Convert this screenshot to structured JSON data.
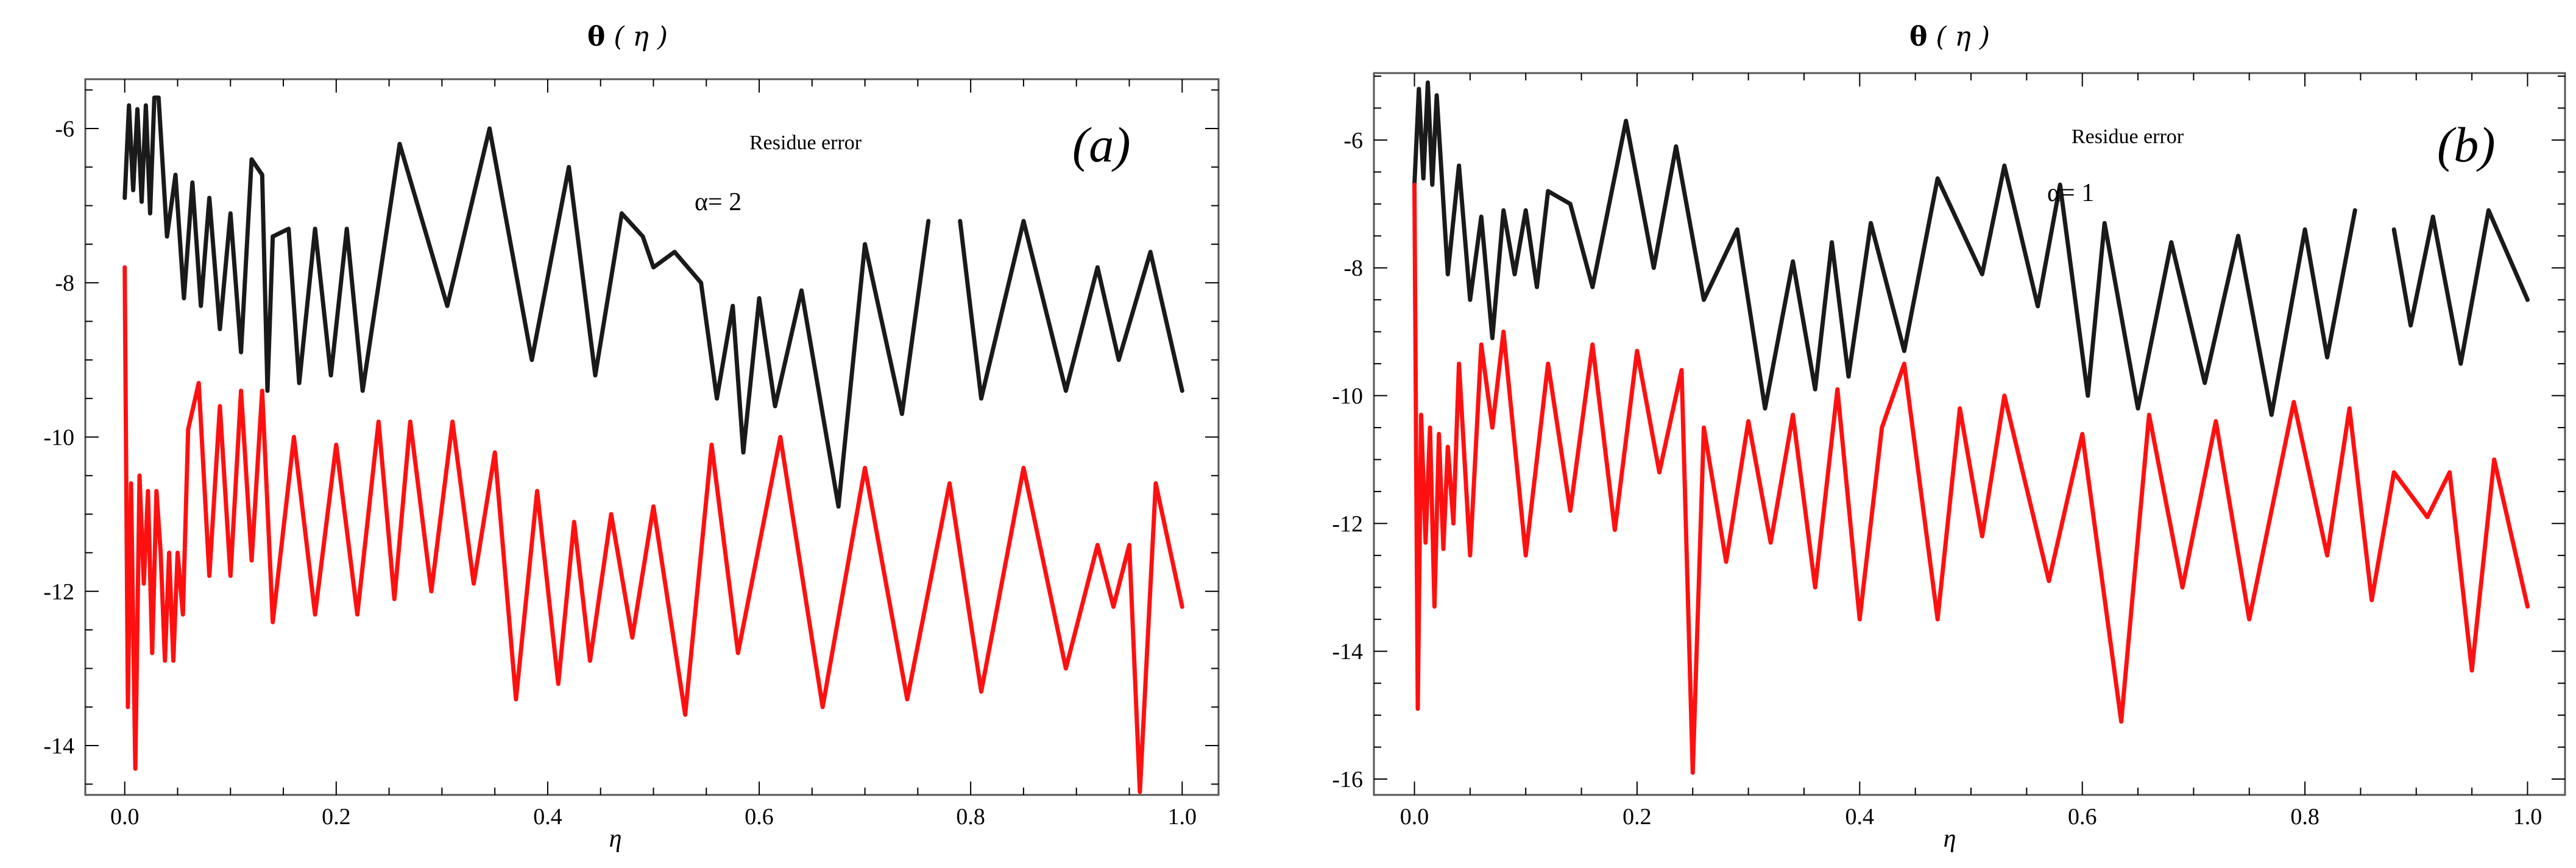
{
  "chart_data": [
    {
      "type": "line",
      "title": "θ (η)",
      "title_symbol": "θ",
      "title_arg": "η",
      "panel_label": "(a)",
      "annotation": "Residue error",
      "param_label": "α= 2",
      "xlabel": "η",
      "ylabel": "",
      "xlim": [
        -0.02,
        1.02
      ],
      "ylim": [
        -14.6,
        -5.4
      ],
      "x_ticks": [
        0.0,
        0.2,
        0.4,
        0.6,
        0.8,
        1.0
      ],
      "x_tick_labels": [
        "0.0",
        "0.2",
        "0.4",
        "0.6",
        "0.8",
        "1.0"
      ],
      "y_ticks": [
        -6,
        -8,
        -10,
        -12,
        -14
      ],
      "y_tick_labels": [
        "-6",
        "-8",
        "-10",
        "-12",
        "-14"
      ],
      "series": [
        {
          "name": "black",
          "color": "#1a1a1a",
          "x": [
            0.0,
            0.004,
            0.008,
            0.012,
            0.016,
            0.02,
            0.024,
            0.028,
            0.032,
            0.04,
            0.048,
            0.056,
            0.064,
            0.072,
            0.08,
            0.09,
            0.1,
            0.11,
            0.12,
            0.13,
            0.135,
            0.14,
            0.155,
            0.165,
            0.18,
            0.195,
            0.21,
            0.225,
            0.26,
            0.305,
            0.345,
            0.385,
            0.42,
            0.445,
            0.47,
            0.49,
            0.5,
            0.52,
            0.545,
            0.56,
            0.575,
            0.585,
            0.6,
            0.615,
            0.64,
            0.675,
            0.7,
            0.735,
            0.76,
            0.78,
            0.79,
            0.81,
            0.85,
            0.89,
            0.92,
            0.94,
            0.97,
            1.0
          ],
          "values": [
            -6.9,
            -5.7,
            -6.8,
            -5.75,
            -6.95,
            -5.7,
            -7.1,
            -5.6,
            -5.6,
            -7.4,
            -6.6,
            -8.2,
            -6.7,
            -8.3,
            -6.9,
            -8.6,
            -7.1,
            -8.9,
            -6.4,
            -6.6,
            -9.4,
            -7.4,
            -7.3,
            -9.3,
            -7.3,
            -9.2,
            -7.3,
            -9.4,
            -6.2,
            -8.3,
            -6.0,
            -9.0,
            -6.5,
            -9.2,
            -7.1,
            -7.4,
            -7.8,
            -7.6,
            -8.0,
            -9.5,
            -8.3,
            -10.2,
            -8.2,
            -9.6,
            -8.1,
            -10.9,
            -7.5,
            -9.7,
            -7.2,
            null,
            -7.2,
            -9.5,
            -7.2,
            -9.4,
            -7.8,
            -9.0,
            -7.6,
            -9.4
          ]
        },
        {
          "name": "red",
          "color": "#ff1010",
          "x": [
            0.0,
            0.003,
            0.006,
            0.01,
            0.014,
            0.018,
            0.022,
            0.026,
            0.03,
            0.034,
            0.038,
            0.042,
            0.046,
            0.05,
            0.055,
            0.06,
            0.07,
            0.08,
            0.09,
            0.1,
            0.11,
            0.12,
            0.13,
            0.14,
            0.16,
            0.18,
            0.2,
            0.22,
            0.24,
            0.255,
            0.27,
            0.29,
            0.31,
            0.33,
            0.35,
            0.37,
            0.39,
            0.41,
            0.425,
            0.44,
            0.46,
            0.48,
            0.5,
            0.53,
            0.555,
            0.58,
            0.62,
            0.66,
            0.7,
            0.74,
            0.78,
            0.81,
            0.85,
            0.89,
            0.92,
            0.935,
            0.95,
            0.96,
            0.975,
            1.0
          ],
          "values": [
            -7.8,
            -13.5,
            -10.6,
            -14.3,
            -10.5,
            -11.9,
            -10.7,
            -12.8,
            -10.7,
            -11.5,
            -12.9,
            -11.5,
            -12.9,
            -11.5,
            -12.3,
            -9.9,
            -9.3,
            -11.8,
            -9.6,
            -11.8,
            -9.4,
            -11.6,
            -9.4,
            -12.4,
            -10.0,
            -12.3,
            -10.1,
            -12.3,
            -9.8,
            -12.1,
            -9.8,
            -12.0,
            -9.8,
            -11.9,
            -10.2,
            -13.4,
            -10.7,
            -13.2,
            -11.1,
            -12.9,
            -11.0,
            -12.6,
            -10.9,
            -13.6,
            -10.1,
            -12.8,
            -10.0,
            -13.5,
            -10.4,
            -13.4,
            -10.6,
            -13.3,
            -10.4,
            -13.0,
            -11.4,
            -12.2,
            -11.4,
            -14.6,
            -10.6,
            -12.2
          ]
        }
      ]
    },
    {
      "type": "line",
      "title": "θ (η)",
      "title_symbol": "θ",
      "title_arg": "η",
      "panel_label": "(b)",
      "annotation": "Residue error",
      "param_label": "α= 1",
      "xlabel": "η",
      "ylabel": "",
      "xlim": [
        -0.02,
        1.02
      ],
      "ylim": [
        -16.2,
        -5.0
      ],
      "x_ticks": [
        0.0,
        0.2,
        0.4,
        0.6,
        0.8,
        1.0
      ],
      "x_tick_labels": [
        "0.0",
        "0.2",
        "0.4",
        "0.6",
        "0.8",
        "1.0"
      ],
      "y_ticks": [
        -6,
        -8,
        -10,
        -12,
        -14,
        -16
      ],
      "y_tick_labels": [
        "-6",
        "-8",
        "-10",
        "-12",
        "-14",
        "-16"
      ],
      "series": [
        {
          "name": "black",
          "color": "#1a1a1a",
          "x": [
            0.0,
            0.004,
            0.008,
            0.012,
            0.016,
            0.02,
            0.03,
            0.04,
            0.05,
            0.06,
            0.07,
            0.08,
            0.09,
            0.1,
            0.11,
            0.12,
            0.14,
            0.16,
            0.19,
            0.215,
            0.235,
            0.26,
            0.29,
            0.315,
            0.34,
            0.36,
            0.375,
            0.39,
            0.41,
            0.44,
            0.47,
            0.51,
            0.53,
            0.56,
            0.58,
            0.605,
            0.62,
            0.65,
            0.68,
            0.71,
            0.74,
            0.77,
            0.8,
            0.82,
            0.845,
            0.86,
            0.88,
            0.895,
            0.915,
            0.94,
            0.965,
            1.0
          ],
          "values": [
            -6.7,
            -5.2,
            -6.6,
            -5.1,
            -6.7,
            -5.3,
            -8.1,
            -6.4,
            -8.5,
            -7.2,
            -9.1,
            -7.1,
            -8.1,
            -7.1,
            -8.3,
            -6.8,
            -7.0,
            -8.3,
            -5.7,
            -8.0,
            -6.1,
            -8.5,
            -7.4,
            -10.2,
            -7.9,
            -9.9,
            -7.6,
            -9.7,
            -7.3,
            -9.3,
            -6.6,
            -8.1,
            -6.4,
            -8.6,
            -6.7,
            -10.0,
            -7.3,
            -10.2,
            -7.6,
            -9.8,
            -7.5,
            -10.3,
            -7.4,
            -9.4,
            -7.1,
            null,
            -7.4,
            -8.9,
            -7.2,
            -9.5,
            -7.1,
            -8.5
          ]
        },
        {
          "name": "red",
          "color": "#ff1010",
          "x": [
            0.0,
            0.003,
            0.006,
            0.01,
            0.014,
            0.018,
            0.022,
            0.026,
            0.03,
            0.035,
            0.04,
            0.05,
            0.06,
            0.07,
            0.08,
            0.1,
            0.12,
            0.14,
            0.16,
            0.18,
            0.2,
            0.22,
            0.24,
            0.25,
            0.26,
            0.28,
            0.3,
            0.32,
            0.34,
            0.36,
            0.38,
            0.4,
            0.42,
            0.44,
            0.47,
            0.49,
            0.51,
            0.53,
            0.57,
            0.6,
            0.635,
            0.66,
            0.69,
            0.72,
            0.75,
            0.79,
            0.82,
            0.84,
            0.86,
            0.88,
            0.91,
            0.93,
            0.95,
            0.97,
            1.0
          ],
          "values": [
            -6.7,
            -14.9,
            -10.3,
            -12.3,
            -10.5,
            -13.3,
            -10.6,
            -12.4,
            -10.8,
            -12.0,
            -9.5,
            -12.5,
            -9.2,
            -10.5,
            -9.0,
            -12.5,
            -9.5,
            -11.8,
            -9.2,
            -12.1,
            -9.3,
            -11.2,
            -9.6,
            -15.9,
            -10.5,
            -12.6,
            -10.4,
            -12.3,
            -10.3,
            -13.0,
            -9.9,
            -13.5,
            -10.5,
            -9.5,
            -13.5,
            -10.2,
            -12.2,
            -10.0,
            -12.9,
            -10.6,
            -15.1,
            -10.3,
            -13.0,
            -10.4,
            -13.5,
            -10.1,
            -12.5,
            -10.2,
            -13.2,
            -11.2,
            -11.9,
            -11.2,
            -14.3,
            -11.0,
            -13.3
          ]
        }
      ]
    }
  ]
}
